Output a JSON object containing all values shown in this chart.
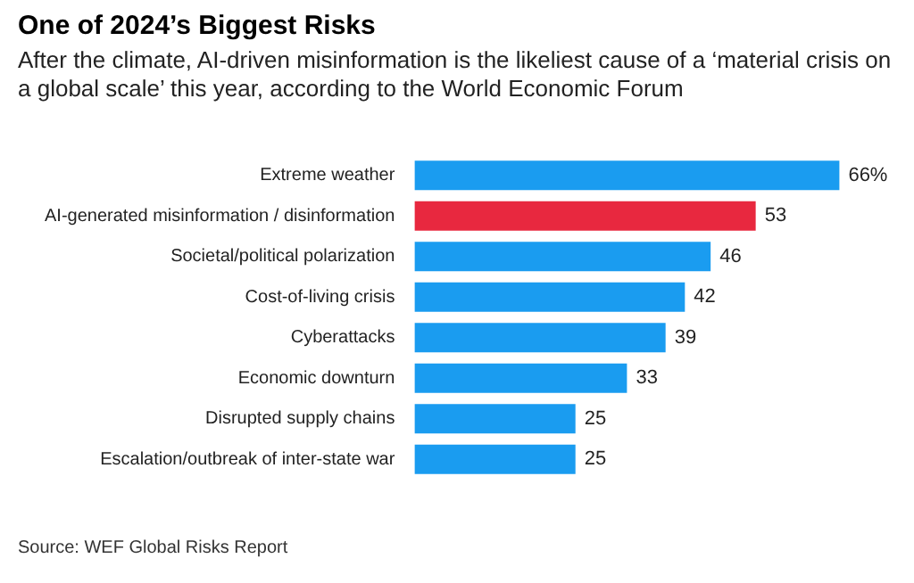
{
  "chart_data": {
    "type": "bar",
    "orientation": "horizontal",
    "title": "One of 2024’s Biggest Risks",
    "subtitle": "After the climate, AI-driven misinformation is the likeliest cause of a ‘material crisis on a global scale’ this year, according to the World Economic Forum",
    "categories": [
      "Extreme weather",
      "AI-generated misinformation / disinformation",
      "Societal/political polarization",
      "Cost-of-living crisis",
      "Cyberattacks",
      "Economic downturn",
      "Disrupted supply chains",
      "Escalation/outbreak of inter-state war"
    ],
    "values": [
      66,
      53,
      46,
      42,
      39,
      33,
      25,
      25
    ],
    "colors": [
      "#1a9cf0",
      "#e8283f",
      "#1a9cf0",
      "#1a9cf0",
      "#1a9cf0",
      "#1a9cf0",
      "#1a9cf0",
      "#1a9cf0"
    ],
    "value_labels": [
      "66%",
      "53",
      "46",
      "42",
      "39",
      "33",
      "25",
      "25"
    ],
    "annotations": [
      "Source: WEF Global Risks Report"
    ],
    "legend": false
  }
}
